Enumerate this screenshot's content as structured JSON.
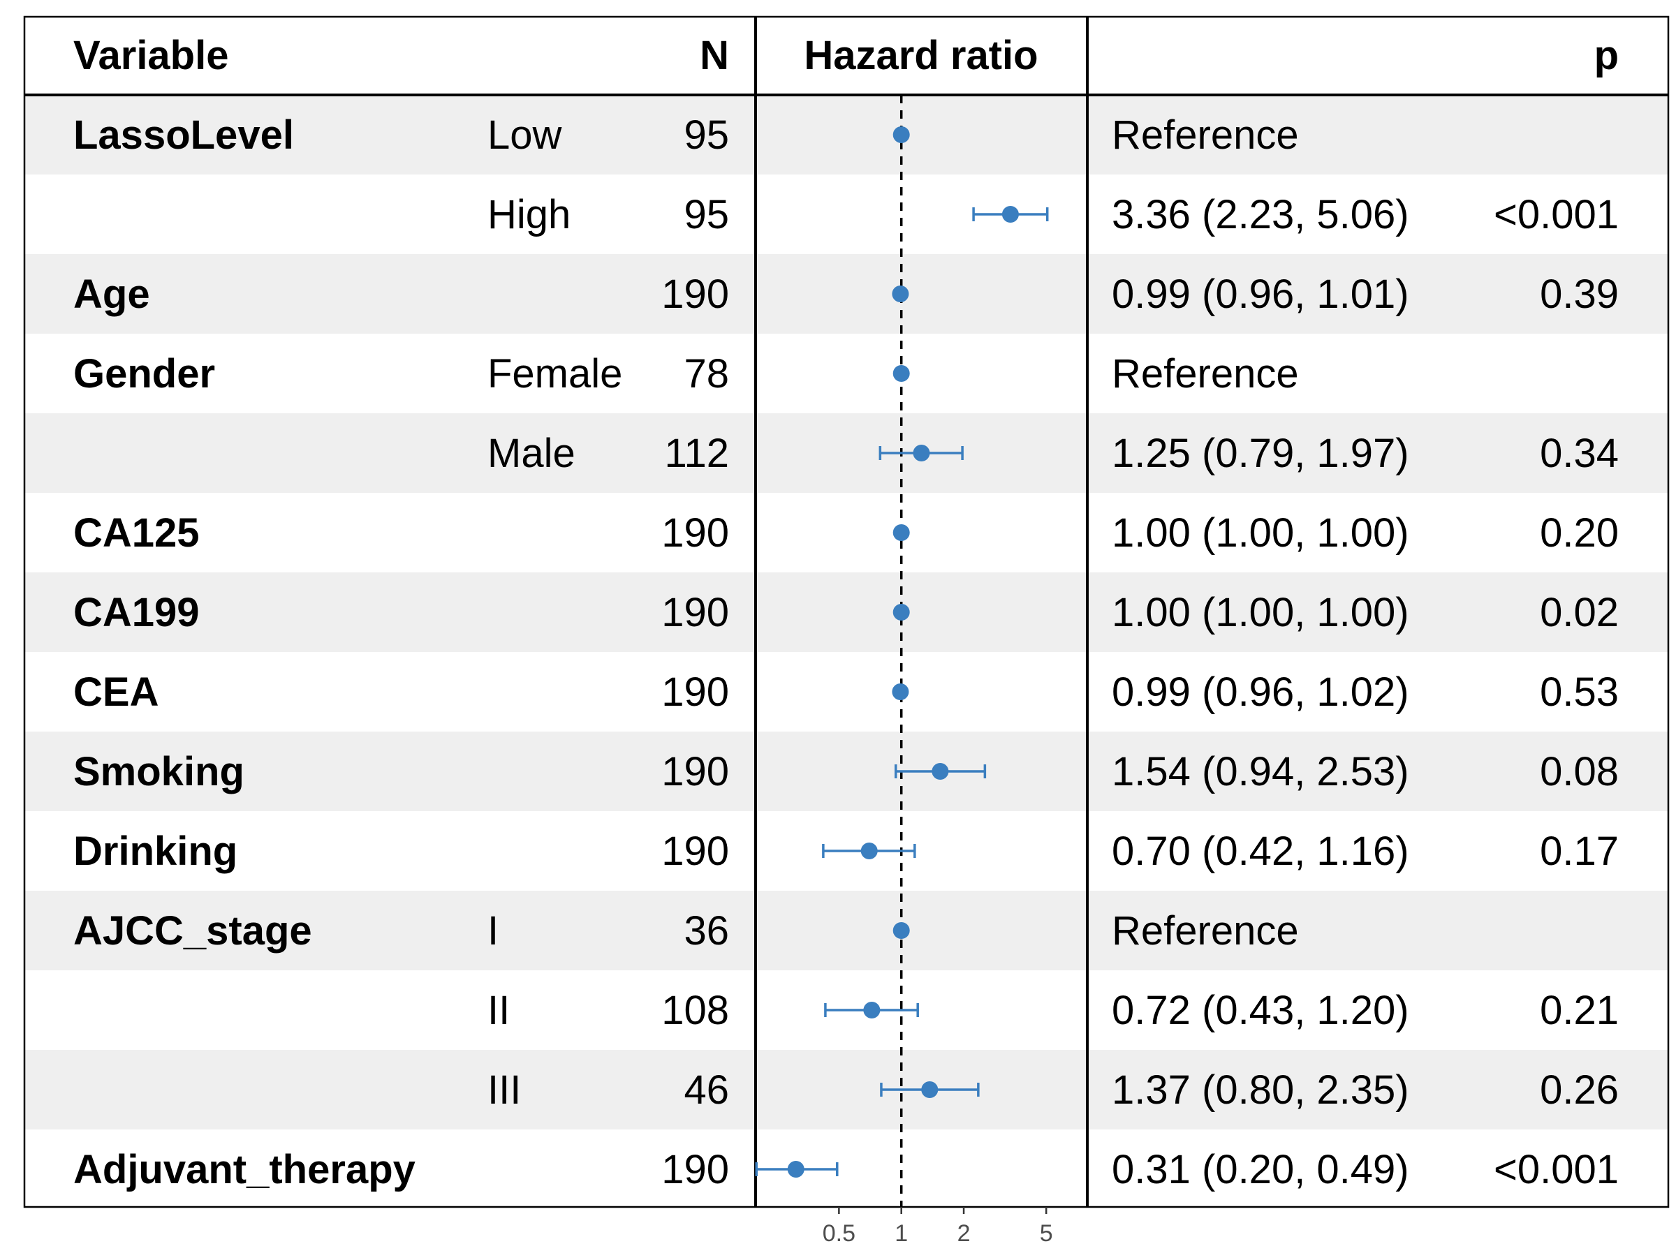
{
  "chart_data": {
    "type": "forest",
    "header": {
      "variable": "Variable",
      "n": "N",
      "hazard_ratio": "Hazard ratio",
      "p": "p"
    },
    "x_scale": "log",
    "xlim": [
      0.25,
      6.5
    ],
    "reference_line": 1,
    "x_ticks": [
      {
        "value": 0.5,
        "label": "0.5"
      },
      {
        "value": 1,
        "label": "1"
      },
      {
        "value": 2,
        "label": "2"
      },
      {
        "value": 5,
        "label": "5"
      }
    ],
    "rows": [
      {
        "variable": "LassoLevel",
        "level": "Low",
        "n": "95",
        "estimate": 1,
        "lower": null,
        "upper": null,
        "hr_text": "Reference",
        "p": ""
      },
      {
        "variable": "",
        "level": "High",
        "n": "95",
        "estimate": 3.36,
        "lower": 2.23,
        "upper": 5.06,
        "hr_text": "3.36 (2.23, 5.06)",
        "p": "<0.001"
      },
      {
        "variable": "Age",
        "level": "",
        "n": "190",
        "estimate": 0.99,
        "lower": 0.96,
        "upper": 1.01,
        "hr_text": "0.99 (0.96, 1.01)",
        "p": "0.39"
      },
      {
        "variable": "Gender",
        "level": "Female",
        "n": "78",
        "estimate": 1,
        "lower": null,
        "upper": null,
        "hr_text": "Reference",
        "p": ""
      },
      {
        "variable": "",
        "level": "Male",
        "n": "112",
        "estimate": 1.25,
        "lower": 0.79,
        "upper": 1.97,
        "hr_text": "1.25 (0.79, 1.97)",
        "p": "0.34"
      },
      {
        "variable": "CA125",
        "level": "",
        "n": "190",
        "estimate": 1.0,
        "lower": 1.0,
        "upper": 1.0,
        "hr_text": "1.00 (1.00, 1.00)",
        "p": "0.20"
      },
      {
        "variable": "CA199",
        "level": "",
        "n": "190",
        "estimate": 1.0,
        "lower": 1.0,
        "upper": 1.0,
        "hr_text": "1.00 (1.00, 1.00)",
        "p": "0.02"
      },
      {
        "variable": "CEA",
        "level": "",
        "n": "190",
        "estimate": 0.99,
        "lower": 0.96,
        "upper": 1.02,
        "hr_text": "0.99 (0.96, 1.02)",
        "p": "0.53"
      },
      {
        "variable": "Smoking",
        "level": "",
        "n": "190",
        "estimate": 1.54,
        "lower": 0.94,
        "upper": 2.53,
        "hr_text": "1.54 (0.94, 2.53)",
        "p": "0.08"
      },
      {
        "variable": "Drinking",
        "level": "",
        "n": "190",
        "estimate": 0.7,
        "lower": 0.42,
        "upper": 1.16,
        "hr_text": "0.70 (0.42, 1.16)",
        "p": "0.17"
      },
      {
        "variable": "AJCC_stage",
        "level": "I",
        "n": "36",
        "estimate": 1,
        "lower": null,
        "upper": null,
        "hr_text": "Reference",
        "p": ""
      },
      {
        "variable": "",
        "level": "II",
        "n": "108",
        "estimate": 0.72,
        "lower": 0.43,
        "upper": 1.2,
        "hr_text": "0.72 (0.43, 1.20)",
        "p": "0.21"
      },
      {
        "variable": "",
        "level": "III",
        "n": "46",
        "estimate": 1.37,
        "lower": 0.8,
        "upper": 2.35,
        "hr_text": "1.37 (0.80, 2.35)",
        "p": "0.26"
      },
      {
        "variable": "Adjuvant_therapy",
        "level": "",
        "n": "190",
        "estimate": 0.31,
        "lower": 0.2,
        "upper": 0.49,
        "hr_text": "0.31 (0.20, 0.49)",
        "p": "<0.001"
      }
    ],
    "colors": {
      "point": "#3a7ebf",
      "stripe": "#efefef",
      "border": "#000000"
    }
  }
}
